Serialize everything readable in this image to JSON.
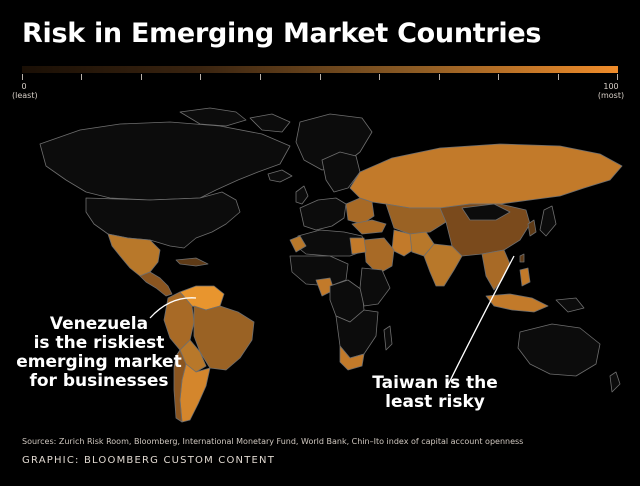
{
  "title": "Risk in Emerging Market Countries",
  "scale": {
    "min_value": "0",
    "min_label": "(least)",
    "max_value": "100",
    "max_label": "(most)",
    "low_color": "#1a0f05",
    "high_color": "#f08c2a"
  },
  "callouts": {
    "venezuela_line1": "Venezuela",
    "venezuela_line2": "is the riskiest",
    "venezuela_line3": "emerging market",
    "venezuela_line4": "for businesses",
    "taiwan_line1": "Taiwan is the",
    "taiwan_line2": "least risky"
  },
  "footer": {
    "sources": "Sources: Zurich Risk Room, Bloomberg, International Monetary Fund, World Bank, Chin–Ito index of capital account openness",
    "credit": "GRAPHIC: BLOOMBERG CUSTOM CONTENT"
  },
  "colors": {
    "background": "#000000",
    "non_emerging_fill": "#0c0c0c",
    "border": "#6e6e6e",
    "highest_risk": "#e8952e",
    "high_risk": "#c27a2a",
    "mid_risk": "#a86a26",
    "lower_risk": "#8a5520",
    "lowest_risk": "#5e3a16"
  }
}
